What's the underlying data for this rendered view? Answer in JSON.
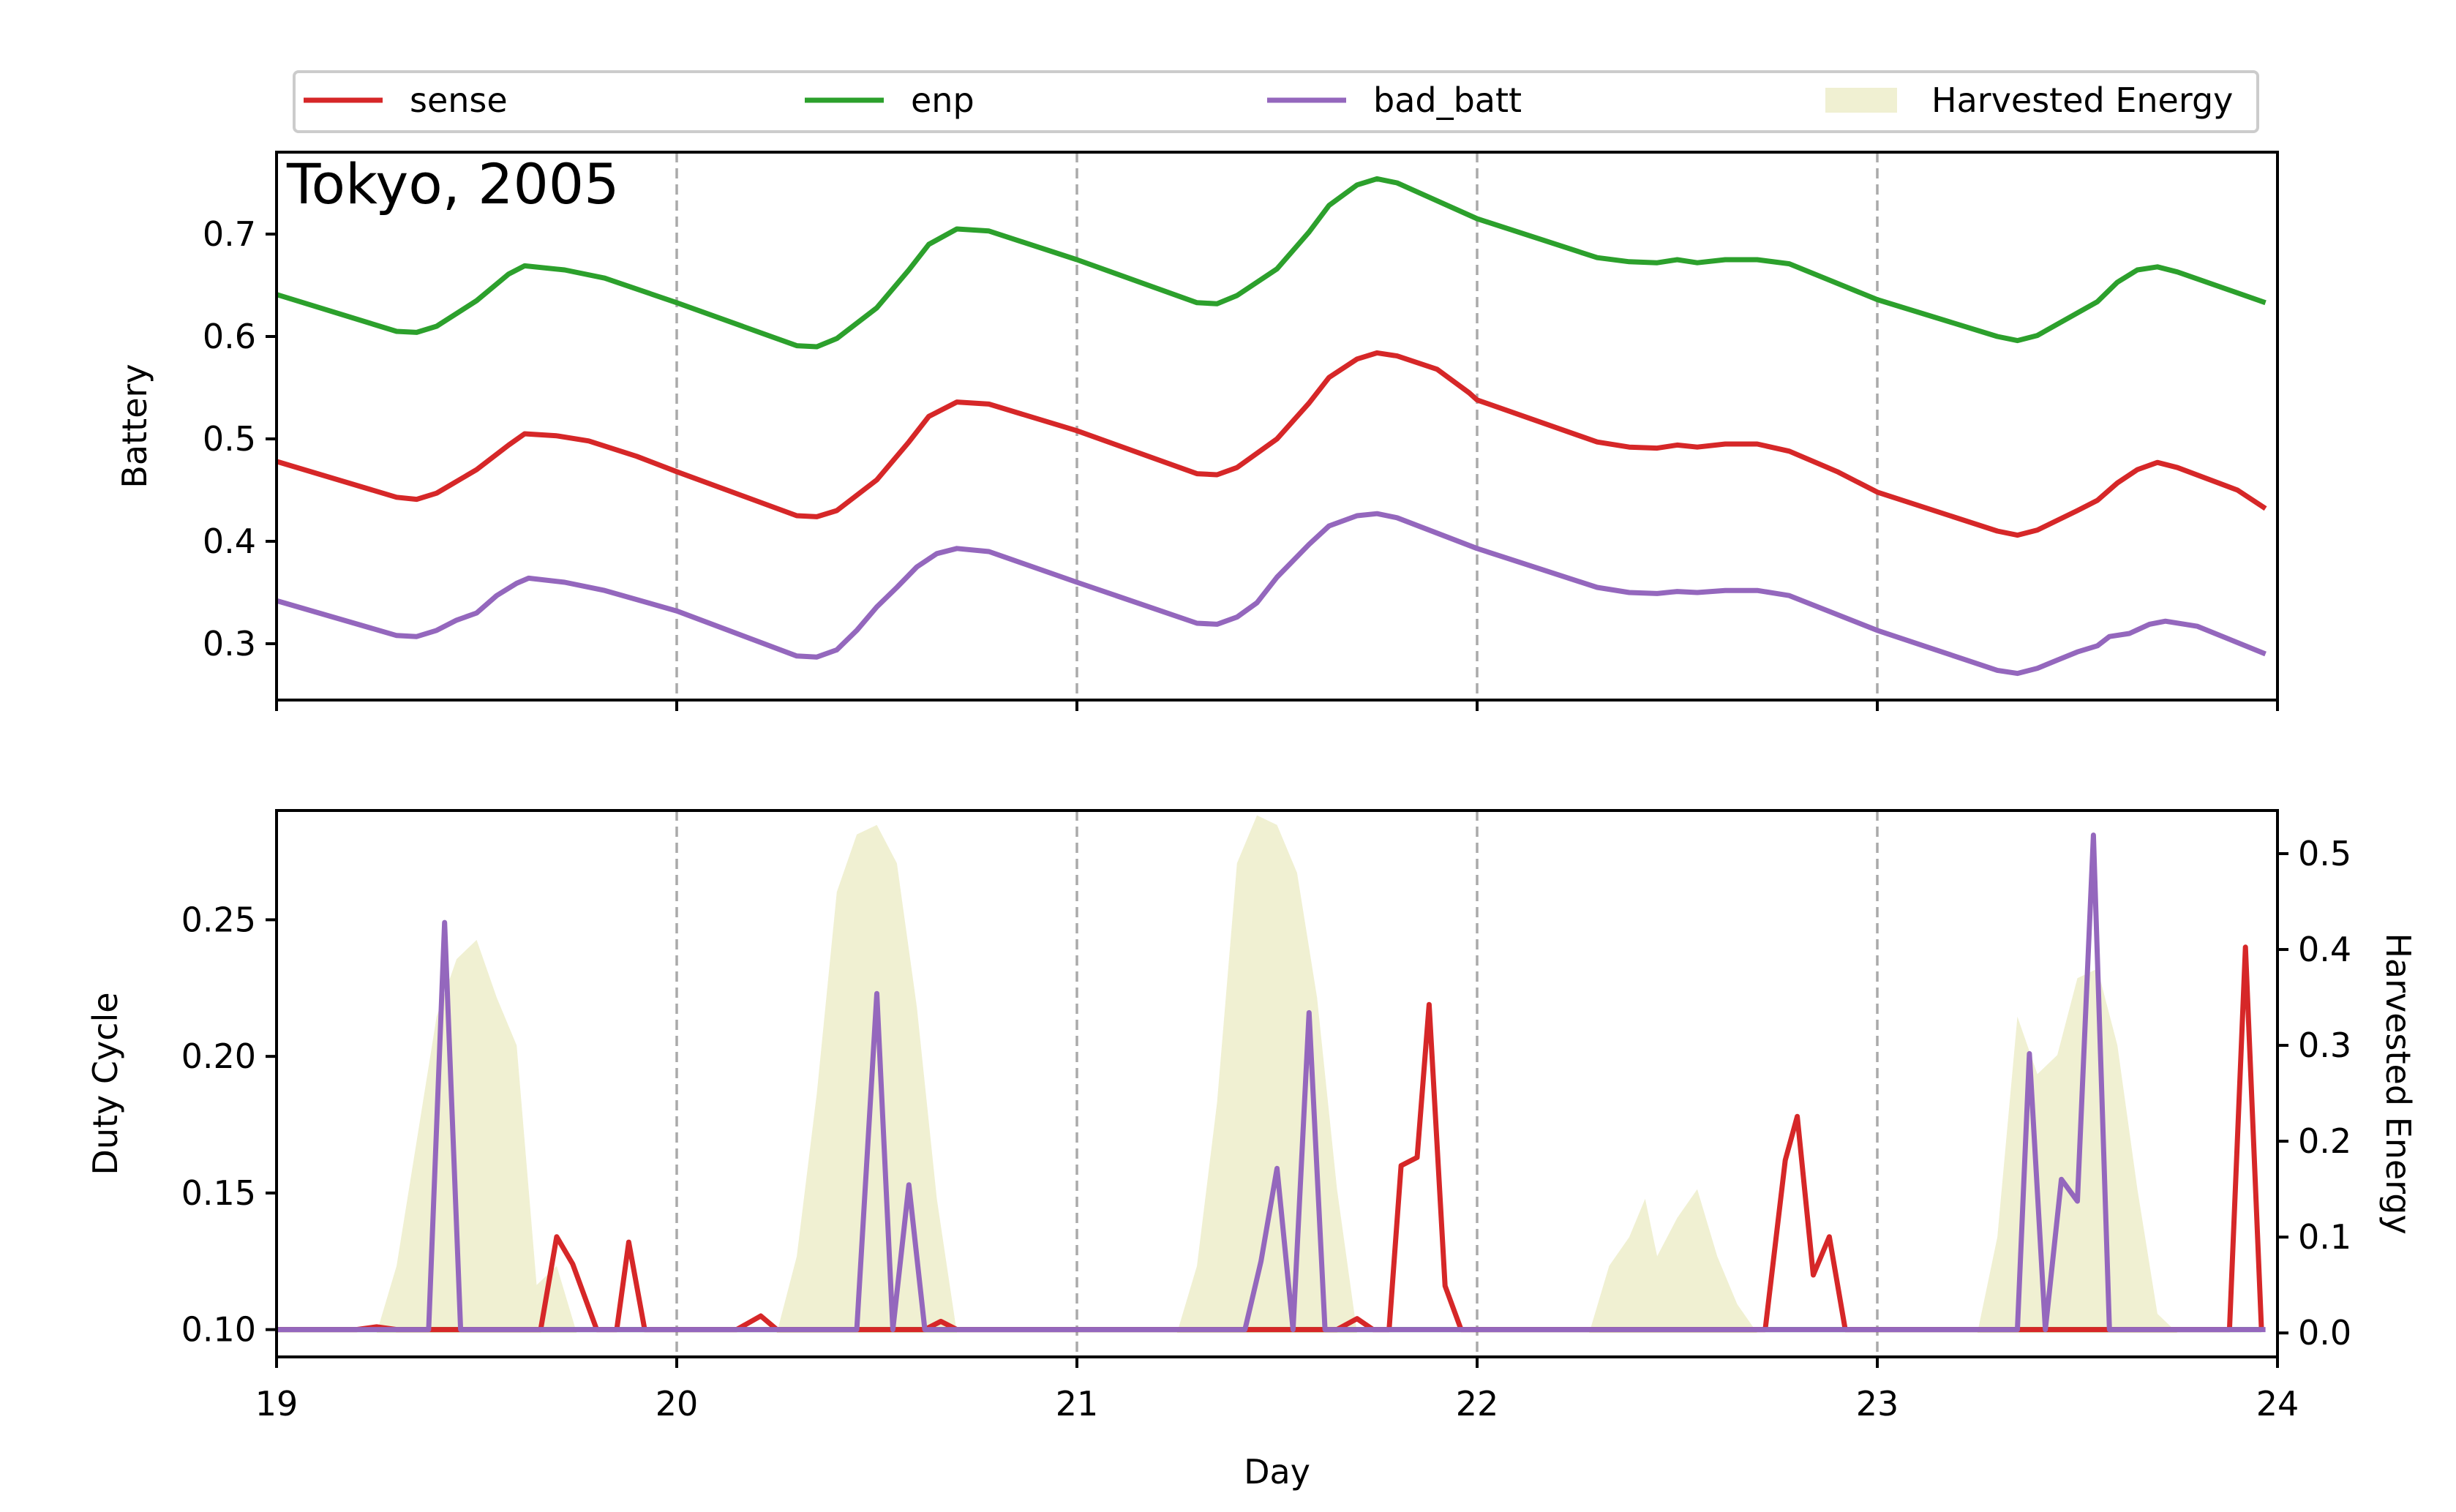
{
  "chart_data": {
    "type": "line",
    "x_label": "Day",
    "x_range": [
      19,
      24
    ],
    "x_ticks": [
      "19",
      "20",
      "21",
      "22",
      "23",
      "24"
    ],
    "vertical_gridlines_at": [
      20,
      21,
      22,
      23
    ],
    "colors": {
      "sense": "#d62728",
      "enp": "#2ca02c",
      "bad_batt": "#9467bd",
      "harvest": "#f0f0d2"
    },
    "legend": {
      "location": "top",
      "entries": [
        {
          "key": "sense",
          "label": "sense",
          "kind": "line"
        },
        {
          "key": "enp",
          "label": "enp",
          "kind": "line"
        },
        {
          "key": "bad_batt",
          "label": "bad_batt",
          "kind": "line"
        },
        {
          "key": "harvest",
          "label": "Harvested Energy",
          "kind": "area"
        }
      ]
    },
    "top_panel": {
      "title": "Tokyo, 2005",
      "ylabel": "Battery",
      "ylim": [
        0.245,
        0.78
      ],
      "y_ticks": [
        "0.3",
        "0.4",
        "0.5",
        "0.6",
        "0.7"
      ],
      "series": [
        {
          "key": "enp",
          "name": "enp",
          "points": [
            [
              19.0,
              0.641
            ],
            [
              19.3,
              0.605
            ],
            [
              19.35,
              0.604
            ],
            [
              19.4,
              0.61
            ],
            [
              19.5,
              0.635
            ],
            [
              19.58,
              0.661
            ],
            [
              19.62,
              0.669
            ],
            [
              19.72,
              0.665
            ],
            [
              19.82,
              0.657
            ],
            [
              20.0,
              0.633
            ],
            [
              20.3,
              0.591
            ],
            [
              20.35,
              0.59
            ],
            [
              20.4,
              0.598
            ],
            [
              20.5,
              0.628
            ],
            [
              20.58,
              0.665
            ],
            [
              20.63,
              0.69
            ],
            [
              20.7,
              0.705
            ],
            [
              20.78,
              0.703
            ],
            [
              21.0,
              0.675
            ],
            [
              21.3,
              0.633
            ],
            [
              21.35,
              0.632
            ],
            [
              21.4,
              0.64
            ],
            [
              21.5,
              0.666
            ],
            [
              21.58,
              0.702
            ],
            [
              21.63,
              0.728
            ],
            [
              21.7,
              0.748
            ],
            [
              21.75,
              0.754
            ],
            [
              21.8,
              0.75
            ],
            [
              22.0,
              0.715
            ],
            [
              22.3,
              0.677
            ],
            [
              22.38,
              0.673
            ],
            [
              22.45,
              0.672
            ],
            [
              22.5,
              0.675
            ],
            [
              22.55,
              0.672
            ],
            [
              22.62,
              0.675
            ],
            [
              22.7,
              0.675
            ],
            [
              22.78,
              0.671
            ],
            [
              23.0,
              0.636
            ],
            [
              23.3,
              0.6
            ],
            [
              23.35,
              0.596
            ],
            [
              23.4,
              0.601
            ],
            [
              23.5,
              0.623
            ],
            [
              23.55,
              0.634
            ],
            [
              23.6,
              0.653
            ],
            [
              23.65,
              0.665
            ],
            [
              23.7,
              0.668
            ],
            [
              23.75,
              0.663
            ],
            [
              23.97,
              0.633
            ]
          ]
        },
        {
          "key": "sense",
          "name": "sense",
          "points": [
            [
              19.0,
              0.478
            ],
            [
              19.3,
              0.443
            ],
            [
              19.35,
              0.441
            ],
            [
              19.4,
              0.447
            ],
            [
              19.5,
              0.47
            ],
            [
              19.58,
              0.494
            ],
            [
              19.62,
              0.505
            ],
            [
              19.7,
              0.503
            ],
            [
              19.78,
              0.498
            ],
            [
              19.9,
              0.483
            ],
            [
              20.0,
              0.468
            ],
            [
              20.3,
              0.425
            ],
            [
              20.35,
              0.424
            ],
            [
              20.4,
              0.43
            ],
            [
              20.5,
              0.46
            ],
            [
              20.58,
              0.497
            ],
            [
              20.63,
              0.522
            ],
            [
              20.7,
              0.536
            ],
            [
              20.78,
              0.534
            ],
            [
              21.0,
              0.508
            ],
            [
              21.3,
              0.466
            ],
            [
              21.35,
              0.465
            ],
            [
              21.4,
              0.472
            ],
            [
              21.5,
              0.5
            ],
            [
              21.58,
              0.535
            ],
            [
              21.63,
              0.56
            ],
            [
              21.7,
              0.578
            ],
            [
              21.75,
              0.584
            ],
            [
              21.8,
              0.581
            ],
            [
              21.9,
              0.568
            ],
            [
              21.98,
              0.545
            ],
            [
              22.0,
              0.538
            ],
            [
              22.3,
              0.497
            ],
            [
              22.38,
              0.492
            ],
            [
              22.45,
              0.491
            ],
            [
              22.5,
              0.494
            ],
            [
              22.55,
              0.492
            ],
            [
              22.62,
              0.495
            ],
            [
              22.7,
              0.495
            ],
            [
              22.78,
              0.488
            ],
            [
              22.9,
              0.468
            ],
            [
              23.0,
              0.448
            ],
            [
              23.3,
              0.41
            ],
            [
              23.35,
              0.406
            ],
            [
              23.4,
              0.411
            ],
            [
              23.5,
              0.43
            ],
            [
              23.55,
              0.44
            ],
            [
              23.6,
              0.457
            ],
            [
              23.65,
              0.47
            ],
            [
              23.7,
              0.477
            ],
            [
              23.75,
              0.472
            ],
            [
              23.9,
              0.45
            ],
            [
              23.97,
              0.432
            ]
          ]
        },
        {
          "key": "bad_batt",
          "name": "bad_batt",
          "points": [
            [
              19.0,
              0.342
            ],
            [
              19.3,
              0.308
            ],
            [
              19.35,
              0.307
            ],
            [
              19.4,
              0.313
            ],
            [
              19.45,
              0.323
            ],
            [
              19.5,
              0.33
            ],
            [
              19.55,
              0.347
            ],
            [
              19.6,
              0.359
            ],
            [
              19.63,
              0.364
            ],
            [
              19.72,
              0.36
            ],
            [
              19.82,
              0.352
            ],
            [
              20.0,
              0.332
            ],
            [
              20.3,
              0.288
            ],
            [
              20.35,
              0.287
            ],
            [
              20.4,
              0.294
            ],
            [
              20.45,
              0.313
            ],
            [
              20.5,
              0.336
            ],
            [
              20.55,
              0.355
            ],
            [
              20.6,
              0.375
            ],
            [
              20.65,
              0.388
            ],
            [
              20.7,
              0.393
            ],
            [
              20.78,
              0.39
            ],
            [
              21.0,
              0.36
            ],
            [
              21.3,
              0.32
            ],
            [
              21.35,
              0.319
            ],
            [
              21.4,
              0.326
            ],
            [
              21.45,
              0.34
            ],
            [
              21.5,
              0.365
            ],
            [
              21.58,
              0.397
            ],
            [
              21.63,
              0.415
            ],
            [
              21.7,
              0.425
            ],
            [
              21.75,
              0.427
            ],
            [
              21.8,
              0.423
            ],
            [
              22.0,
              0.393
            ],
            [
              22.3,
              0.355
            ],
            [
              22.38,
              0.35
            ],
            [
              22.45,
              0.349
            ],
            [
              22.5,
              0.351
            ],
            [
              22.55,
              0.35
            ],
            [
              22.62,
              0.352
            ],
            [
              22.7,
              0.352
            ],
            [
              22.78,
              0.347
            ],
            [
              23.0,
              0.313
            ],
            [
              23.3,
              0.274
            ],
            [
              23.35,
              0.271
            ],
            [
              23.4,
              0.276
            ],
            [
              23.45,
              0.284
            ],
            [
              23.5,
              0.292
            ],
            [
              23.55,
              0.298
            ],
            [
              23.58,
              0.307
            ],
            [
              23.63,
              0.31
            ],
            [
              23.68,
              0.319
            ],
            [
              23.72,
              0.322
            ],
            [
              23.8,
              0.317
            ],
            [
              23.97,
              0.29
            ]
          ]
        }
      ]
    },
    "bottom_panel": {
      "ylabel": "Duty Cycle",
      "ylim": [
        0.09,
        0.29
      ],
      "y_ticks": [
        "0.10",
        "0.15",
        "0.20",
        "0.25"
      ],
      "ylabel_right": "Harvested Energy",
      "ylim_right": [
        -0.025,
        0.545
      ],
      "y_ticks_right": [
        "0.0",
        "0.1",
        "0.2",
        "0.3",
        "0.4",
        "0.5"
      ],
      "harvested_energy": [
        [
          19.25,
          0.0
        ],
        [
          19.3,
          0.07
        ],
        [
          19.35,
          0.2
        ],
        [
          19.4,
          0.33
        ],
        [
          19.45,
          0.39
        ],
        [
          19.5,
          0.41
        ],
        [
          19.55,
          0.35
        ],
        [
          19.6,
          0.3
        ],
        [
          19.65,
          0.05
        ],
        [
          19.7,
          0.07
        ],
        [
          19.75,
          0.0
        ],
        [
          20.25,
          0.0
        ],
        [
          20.3,
          0.08
        ],
        [
          20.35,
          0.25
        ],
        [
          20.4,
          0.46
        ],
        [
          20.45,
          0.52
        ],
        [
          20.5,
          0.53
        ],
        [
          20.55,
          0.49
        ],
        [
          20.6,
          0.34
        ],
        [
          20.65,
          0.14
        ],
        [
          20.7,
          0.0
        ],
        [
          21.25,
          0.0
        ],
        [
          21.3,
          0.07
        ],
        [
          21.35,
          0.24
        ],
        [
          21.4,
          0.49
        ],
        [
          21.45,
          0.54
        ],
        [
          21.5,
          0.53
        ],
        [
          21.55,
          0.48
        ],
        [
          21.6,
          0.35
        ],
        [
          21.65,
          0.15
        ],
        [
          21.7,
          0.0
        ],
        [
          22.28,
          0.0
        ],
        [
          22.33,
          0.07
        ],
        [
          22.38,
          0.1
        ],
        [
          22.42,
          0.14
        ],
        [
          22.45,
          0.08
        ],
        [
          22.5,
          0.12
        ],
        [
          22.55,
          0.15
        ],
        [
          22.6,
          0.08
        ],
        [
          22.65,
          0.03
        ],
        [
          22.7,
          0.0
        ],
        [
          23.25,
          0.0
        ],
        [
          23.3,
          0.1
        ],
        [
          23.35,
          0.33
        ],
        [
          23.4,
          0.27
        ],
        [
          23.45,
          0.29
        ],
        [
          23.5,
          0.37
        ],
        [
          23.55,
          0.38
        ],
        [
          23.6,
          0.3
        ],
        [
          23.65,
          0.15
        ],
        [
          23.7,
          0.02
        ],
        [
          23.75,
          0.0
        ]
      ],
      "series": [
        {
          "key": "sense",
          "name": "sense",
          "points": [
            [
              19.0,
              0.1
            ],
            [
              19.2,
              0.1
            ],
            [
              19.25,
              0.101
            ],
            [
              19.3,
              0.1
            ],
            [
              19.66,
              0.1
            ],
            [
              19.7,
              0.134
            ],
            [
              19.74,
              0.124
            ],
            [
              19.8,
              0.1
            ],
            [
              19.85,
              0.1
            ],
            [
              19.88,
              0.132
            ],
            [
              19.92,
              0.1
            ],
            [
              20.15,
              0.1
            ],
            [
              20.21,
              0.105
            ],
            [
              20.25,
              0.1
            ],
            [
              20.62,
              0.1
            ],
            [
              20.66,
              0.103
            ],
            [
              20.7,
              0.1
            ],
            [
              21.65,
              0.1
            ],
            [
              21.7,
              0.104
            ],
            [
              21.74,
              0.1
            ],
            [
              21.78,
              0.1
            ],
            [
              21.81,
              0.16
            ],
            [
              21.85,
              0.163
            ],
            [
              21.88,
              0.219
            ],
            [
              21.92,
              0.116
            ],
            [
              21.96,
              0.1
            ],
            [
              22.72,
              0.1
            ],
            [
              22.77,
              0.162
            ],
            [
              22.8,
              0.178
            ],
            [
              22.84,
              0.12
            ],
            [
              22.88,
              0.134
            ],
            [
              22.92,
              0.1
            ],
            [
              23.88,
              0.1
            ],
            [
              23.92,
              0.24
            ],
            [
              23.96,
              0.1
            ]
          ]
        },
        {
          "key": "enp",
          "name": "enp",
          "points": [
            [
              19.0,
              0.1
            ],
            [
              23.96,
              0.1
            ]
          ]
        },
        {
          "key": "bad_batt",
          "name": "bad_batt",
          "points": [
            [
              19.0,
              0.1
            ],
            [
              19.38,
              0.1
            ],
            [
              19.42,
              0.249
            ],
            [
              19.46,
              0.1
            ],
            [
              20.45,
              0.1
            ],
            [
              20.5,
              0.223
            ],
            [
              20.54,
              0.1
            ],
            [
              20.58,
              0.153
            ],
            [
              20.62,
              0.1
            ],
            [
              21.42,
              0.1
            ],
            [
              21.46,
              0.125
            ],
            [
              21.5,
              0.159
            ],
            [
              21.54,
              0.1
            ],
            [
              21.58,
              0.216
            ],
            [
              21.62,
              0.1
            ],
            [
              23.35,
              0.1
            ],
            [
              23.38,
              0.201
            ],
            [
              23.42,
              0.1
            ],
            [
              23.46,
              0.155
            ],
            [
              23.5,
              0.147
            ],
            [
              23.54,
              0.281
            ],
            [
              23.58,
              0.1
            ],
            [
              23.97,
              0.1
            ]
          ]
        }
      ]
    }
  }
}
